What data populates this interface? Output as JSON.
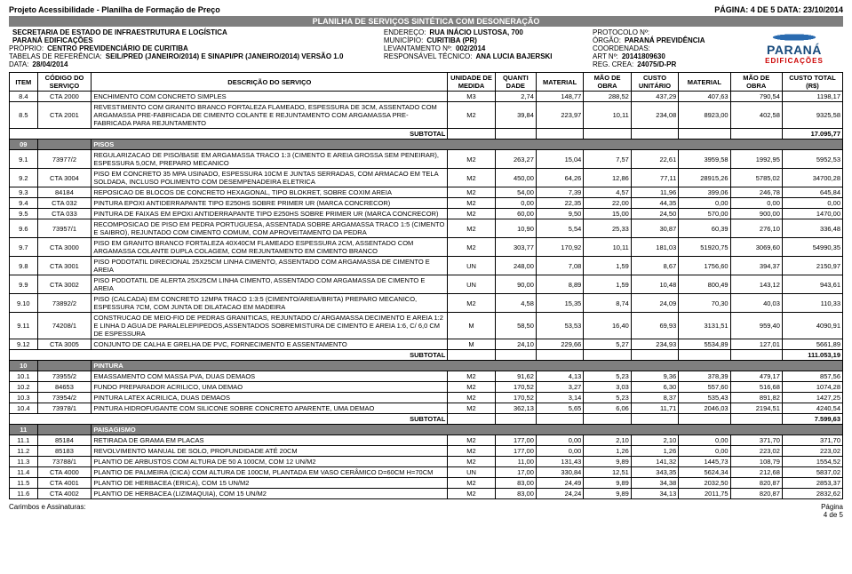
{
  "page_meta": {
    "project": "Projeto Acessibilidade - Planilha de Formação de Preço",
    "pageinfo": "PÁGINA: 4 DE 5  DATA: 23/10/2014",
    "band": "PLANILHA DE SERVIÇOS SINTÉTICA COM DESONERAÇÃO"
  },
  "header": {
    "left": [
      [
        "",
        "SECRETARIA DE ESTADO DE INFRAESTRUTURA E LOGÍSTICA"
      ],
      [
        "",
        "PARANÁ EDIFICAÇÕES"
      ],
      [
        "PRÓPRIO:",
        "CENTRO PREVIDENCIÁRIO DE CURITIBA"
      ],
      [
        "TABELAS DE REFERÊNCIA:",
        "SEIL/PRED (JANEIRO/2014) E SINAPI/PR (JANEIRO/2014) VERSÃO 1.0"
      ],
      [
        "DATA:",
        "28/04/2014"
      ]
    ],
    "mid": [
      [
        "ENDEREÇO:",
        "RUA INÁCIO LUSTOSA, 700"
      ],
      [
        "MUNICÍPIO:",
        "CURITIBA (PR)"
      ],
      [
        "LEVANTAMENTO Nº:",
        "002/2014"
      ],
      [
        "RESPONSÁVEL TÉCNICO:",
        "ANA LUCIA BAJERSKI"
      ]
    ],
    "right": [
      [
        "PROTOCOLO Nº:",
        ""
      ],
      [
        "ÓRGÃO:",
        "PARANÁ PREVIDÊNCIA"
      ],
      [
        "COORDENADAS:",
        ""
      ],
      [
        "ART Nº:",
        "20141809630"
      ],
      [
        "REG. CREA:",
        "24075/D-PR"
      ]
    ]
  },
  "columns": [
    "ITEM",
    "CÓDIGO DO SERVIÇO",
    "DESCRIÇÃO DO SERVIÇO",
    "UNIDADE DE MEDIDA",
    "QUANTI DADE",
    "MATERIAL",
    "MÃO DE OBRA",
    "CUSTO UNITÁRIO",
    "MATERIAL",
    "MÃO DE OBRA",
    "CUSTO TOTAL (R$)"
  ],
  "blocks": [
    {
      "rows": [
        [
          "8.4",
          "CTA 2000",
          "ENCHIMENTO COM CONCRETO SIMPLES",
          "M3",
          "2,74",
          "148,77",
          "288,52",
          "437,29",
          "407,63",
          "790,54",
          "1198,17"
        ],
        [
          "8.5",
          "CTA 2001",
          "REVESTIMENTO COM GRANITO BRANCO FORTALEZA FLAMEADO, ESPESSURA DE 3CM, ASSENTADO COM ARGAMASSA PRE-FABRICADA DE CIMENTO COLANTE E REJUNTAMENTO COM ARGAMASSA PRE-FABRICADA PARA REJUNTAMENTO",
          "M2",
          "39,84",
          "223,97",
          "10,11",
          "234,08",
          "8923,00",
          "402,58",
          "9325,58"
        ]
      ],
      "subtotal": "17.095,77"
    },
    {
      "section": [
        "09",
        "",
        "PISOS"
      ],
      "rows": [
        [
          "9.1",
          "73977/2",
          "REGULARIZACAO DE PISO/BASE EM ARGAMASSA TRACO 1:3 (CIMENTO E AREIA GROSSA SEM PENEIRAR), ESPESSURA 5,0CM, PREPARO MECANICO",
          "M2",
          "263,27",
          "15,04",
          "7,57",
          "22,61",
          "3959,58",
          "1992,95",
          "5952,53"
        ],
        [
          "9.2",
          "CTA 3004",
          "PISO EM CONCRETO 35 MPA USINADO, ESPESSURA 10CM E JUNTAS SERRADAS, COM ARMACAO EM TELA SOLDADA, INCLUSO POLIMENTO COM DESEMPENADEIRA ELETRICA",
          "M2",
          "450,00",
          "64,26",
          "12,86",
          "77,11",
          "28915,26",
          "5785,02",
          "34700,28"
        ],
        [
          "9.3",
          "84184",
          "REPOSICAO DE BLOCOS DE CONCRETO HEXAGONAL, TIPO BLOKRET, SOBRE COXIM AREIA",
          "M2",
          "54,00",
          "7,39",
          "4,57",
          "11,96",
          "399,06",
          "246,78",
          "645,84"
        ],
        [
          "9.4",
          "CTA 032",
          "PINTURA EPOXI ANTIDERRAPANTE TIPO E250HS SOBRE PRIMER UR (MARCA CONCRECOR)",
          "M2",
          "0,00",
          "22,35",
          "22,00",
          "44,35",
          "0,00",
          "0,00",
          "0,00"
        ],
        [
          "9.5",
          "CTA 033",
          "PINTURA DE FAIXAS EM  EPOXI ANTIDERRAPANTE TIPO E250HS SOBRE PRIMER UR (MARCA CONCRECOR)",
          "M2",
          "60,00",
          "9,50",
          "15,00",
          "24,50",
          "570,00",
          "900,00",
          "1470,00"
        ],
        [
          "9.6",
          "73957/1",
          "RECOMPOSICAO DE PISO EM PEDRA PORTUGUESA, ASSENTADA SOBRE ARGAMASSA TRACO 1:5 (CIMENTO E SAIBRO), REJUNTADO COM CIMENTO COMUM, COM APROVEITAMENTO DA PEDRA",
          "M2",
          "10,90",
          "5,54",
          "25,33",
          "30,87",
          "60,39",
          "276,10",
          "336,48"
        ],
        [
          "9.7",
          "CTA 3000",
          "PISO EM GRANITO BRANCO FORTALEZA 40X40CM FLAMEADO ESPESSURA 2CM, ASSENTADO COM ARGAMASSA COLANTE DUPLA COLAGEM, COM REJUNTAMENTO EM CIMENTO BRANCO",
          "M2",
          "303,77",
          "170,92",
          "10,11",
          "181,03",
          "51920,75",
          "3069,60",
          "54990,35"
        ],
        [
          "9.8",
          "CTA 3001",
          "PISO PODOTATIL DIRECIONAL 25X25CM LINHA CIMENTO, ASSENTADO COM ARGAMASSA DE CIMENTO E AREIA",
          "UN",
          "248,00",
          "7,08",
          "1,59",
          "8,67",
          "1756,60",
          "394,37",
          "2150,97"
        ],
        [
          "9.9",
          "CTA 3002",
          "PISO PODOTATIL DE ALERTA 25X25CM LINHA CIMENTO, ASSENTADO COM ARGAMASSA DE CIMENTO E AREIA",
          "UN",
          "90,00",
          "8,89",
          "1,59",
          "10,48",
          "800,49",
          "143,12",
          "943,61"
        ],
        [
          "9.10",
          "73892/2",
          "PISO (CALCADA) EM CONCRETO 12MPA TRACO 1:3:5 (CIMENTO/AREIA/BRITA) PREPARO MECANICO, ESPESSURA 7CM, COM JUNTA DE DILATACAO EM MADEIRA",
          "M2",
          "4,58",
          "15,35",
          "8,74",
          "24,09",
          "70,30",
          "40,03",
          "110,33"
        ],
        [
          "9.11",
          "74208/1",
          "CONSTRUCAO DE MEIO-FIO DE PEDRAS GRANITICAS, REJUNTADO C/ ARGAMASSA DECIMENTO E AREIA 1:2 E LINHA D AGUA DE PARALELEPIPEDOS,ASSENTADOS SOBREMISTURA DE CIMENTO E AREIA 1:6, C/ 6,0 CM DE ESPESSURA",
          "M",
          "58,50",
          "53,53",
          "16,40",
          "69,93",
          "3131,51",
          "959,40",
          "4090,91"
        ],
        [
          "9.12",
          "CTA 3005",
          "CONJUNTO DE CALHA E GRELHA DE PVC, FORNECIMENTO E ASSENTAMENTO",
          "M",
          "24,10",
          "229,66",
          "5,27",
          "234,93",
          "5534,89",
          "127,01",
          "5661,89"
        ]
      ],
      "subtotal": "111.053,19"
    },
    {
      "section": [
        "10",
        "",
        "PINTURA"
      ],
      "rows": [
        [
          "10.1",
          "73955/2",
          "EMASSAMENTO COM MASSA PVA, DUAS DEMAOS",
          "M2",
          "91,62",
          "4,13",
          "5,23",
          "9,36",
          "378,39",
          "479,17",
          "857,56"
        ],
        [
          "10.2",
          "84653",
          "FUNDO PREPARADOR ACRILICO, UMA DEMAO",
          "M2",
          "170,52",
          "3,27",
          "3,03",
          "6,30",
          "557,60",
          "516,68",
          "1074,28"
        ],
        [
          "10.3",
          "73954/2",
          "PINTURA LATEX ACRILICA, DUAS DEMAOS",
          "M2",
          "170,52",
          "3,14",
          "5,23",
          "8,37",
          "535,43",
          "891,82",
          "1427,25"
        ],
        [
          "10.4",
          "73978/1",
          "PINTURA HIDROFUGANTE COM SILICONE SOBRE CONCRETO APARENTE, UMA DEMAO",
          "M2",
          "362,13",
          "5,65",
          "6,06",
          "11,71",
          "2046,03",
          "2194,51",
          "4240,54"
        ]
      ],
      "subtotal": "7.599,63"
    },
    {
      "section": [
        "11",
        "",
        "PAISAGISMO"
      ],
      "rows": [
        [
          "11.1",
          "85184",
          "RETIRADA DE GRAMA EM PLACAS",
          "M2",
          "177,00",
          "0,00",
          "2,10",
          "2,10",
          "0,00",
          "371,70",
          "371,70"
        ],
        [
          "11.2",
          "85183",
          "REVOLVIMENTO MANUAL DE SOLO, PROFUNDIDADE ATÉ 20CM",
          "M2",
          "177,00",
          "0,00",
          "1,26",
          "1,26",
          "0,00",
          "223,02",
          "223,02"
        ],
        [
          "11.3",
          "73788/1",
          "PLANTIO DE ARBUSTOS COM ALTURA DE 50 A 100CM, COM 12 UN/M2",
          "M2",
          "11,00",
          "131,43",
          "9,89",
          "141,32",
          "1445,73",
          "108,79",
          "1554,52"
        ],
        [
          "11.4",
          "CTA 4000",
          "PLANTIO DE PALMEIRA (CICA) COM ALTURA DE 100CM, PLANTADA EM VASO CERÂMICO D=60CM H=70CM",
          "UN",
          "17,00",
          "330,84",
          "12,51",
          "343,35",
          "5624,34",
          "212,68",
          "5837,02"
        ],
        [
          "11.5",
          "CTA 4001",
          "PLANTIO DE HERBACEA (ERICA), COM 15 UN/M2",
          "M2",
          "83,00",
          "24,49",
          "9,89",
          "34,38",
          "2032,50",
          "820,87",
          "2853,37"
        ],
        [
          "11.6",
          "CTA 4002",
          "PLANTIO DE HERBACEA (LIZIMAQUIA), COM 15 UN/M2",
          "M2",
          "83,00",
          "24,24",
          "9,89",
          "34,13",
          "2011,75",
          "820,87",
          "2832,62"
        ]
      ]
    }
  ],
  "footer": {
    "left": "Carimbos e Assinaturas:",
    "right_top": "Página",
    "right_bot": "4 de 5"
  },
  "subtotal_label": "SUBTOTAL"
}
